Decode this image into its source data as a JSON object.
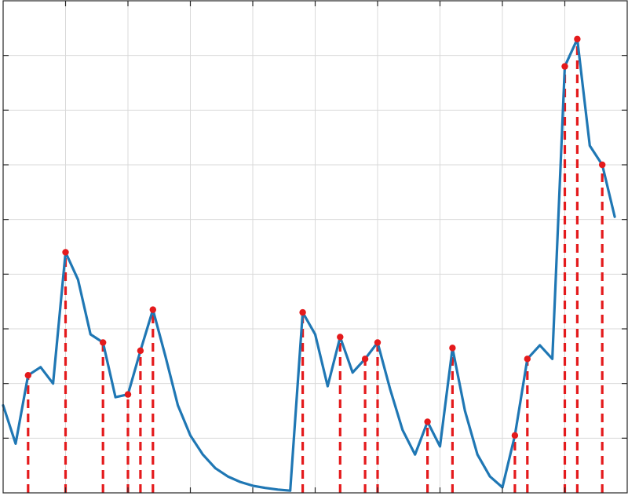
{
  "chart_data": {
    "type": "line",
    "title": "",
    "xlabel": "",
    "ylabel": "",
    "xlim": [
      0,
      50
    ],
    "ylim": [
      0,
      9
    ],
    "grid": true,
    "xtick_step": 5,
    "ytick_step": 1,
    "series": [
      {
        "color": "#1f77b4",
        "x": [
          0,
          1,
          2,
          3,
          4,
          5,
          6,
          7,
          8,
          9,
          10,
          11,
          12,
          13,
          14,
          15,
          16,
          17,
          18,
          19,
          20,
          21,
          22,
          23,
          24,
          25,
          26,
          27,
          28,
          29,
          30,
          31,
          32,
          33,
          34,
          35,
          36,
          37,
          38,
          39,
          40,
          41,
          42,
          43,
          44,
          45,
          46,
          47,
          48,
          49
        ],
        "y": [
          1.6,
          0.9,
          2.15,
          2.3,
          2.0,
          4.4,
          3.9,
          2.9,
          2.75,
          1.75,
          1.8,
          2.6,
          3.35,
          2.5,
          1.6,
          1.05,
          0.7,
          0.45,
          0.3,
          0.2,
          0.13,
          0.09,
          0.06,
          0.04,
          3.3,
          2.9,
          1.95,
          2.85,
          2.2,
          2.45,
          2.75,
          1.9,
          1.15,
          0.7,
          1.3,
          0.85,
          2.65,
          1.5,
          0.7,
          0.3,
          0.1,
          1.05,
          2.45,
          2.7,
          2.45,
          7.8,
          8.3,
          6.35,
          6.0,
          5.05
        ]
      }
    ],
    "stems": {
      "color": "#e41a1c",
      "x": [
        2,
        5,
        8,
        10,
        11,
        12,
        24,
        27,
        29,
        30,
        34,
        36,
        41,
        42,
        45,
        46,
        48
      ],
      "y": [
        2.15,
        4.4,
        2.75,
        1.8,
        2.6,
        3.35,
        3.3,
        2.85,
        2.45,
        2.75,
        1.3,
        2.65,
        1.05,
        2.45,
        7.8,
        8.3,
        6.0
      ]
    }
  }
}
